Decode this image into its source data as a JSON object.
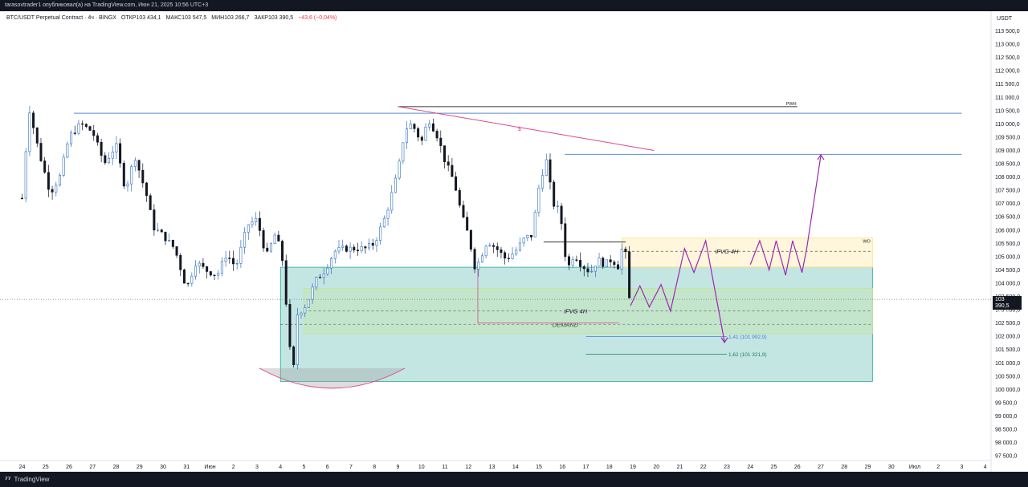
{
  "header": {
    "publisher_line": "tarasovtrader1 опубликовал(а) на TradingView.com, Июн 21, 2025 10:56 UTC+3"
  },
  "legend": {
    "symbol": "BTC/USDT Perpetual Contract · 4ч · BINGX",
    "open": "ОТКР103 434,1",
    "high": "МАКС103 547,5",
    "low": "МИН103 266,7",
    "close": "ЗАКР103 390,5",
    "change": "−43,6 (−0,04%)"
  },
  "footer": {
    "brand": "TradingView"
  },
  "chart_data": {
    "type": "candlestick",
    "currency": "USDT",
    "ylim": [
      97000,
      113700
    ],
    "y_ticks": [
      "113 500,0",
      "113 000,0",
      "112 500,0",
      "112 000,0",
      "111 500,0",
      "111 000,0",
      "110 500,0",
      "110 000,0",
      "109 500,0",
      "109 000,0",
      "108 500,0",
      "108 000,0",
      "107 500,0",
      "107 000,0",
      "106 500,0",
      "106 000,0",
      "105 500,0",
      "105 000,0",
      "104 500,0",
      "104 000,0",
      "103 500,0",
      "103 000,0",
      "102 500,0",
      "102 000,0",
      "101 500,0",
      "101 000,0",
      "100 500,0",
      "100 000,0",
      "99 500,0",
      "99 000,0",
      "98 500,0",
      "98 000,0",
      "97 500,0"
    ],
    "x_labels": [
      "24",
      "25",
      "26",
      "27",
      "28",
      "29",
      "30",
      "31",
      "Июн",
      "2",
      "3",
      "4",
      "5",
      "6",
      "7",
      "8",
      "9",
      "10",
      "11",
      "12",
      "13",
      "14",
      "15",
      "16",
      "17",
      "18",
      "19",
      "20",
      "21",
      "22",
      "23",
      "24",
      "25",
      "26",
      "27",
      "28",
      "29",
      "30",
      "Июл",
      "2",
      "3",
      "4"
    ],
    "last_price": "103 390,5",
    "countdown": "03:47",
    "anchors": [
      [
        24,
        107200
      ],
      [
        24.3,
        110600
      ],
      [
        24.7,
        109000
      ],
      [
        25.2,
        107400
      ],
      [
        25.6,
        108000
      ],
      [
        26,
        109500
      ],
      [
        26.5,
        110000
      ],
      [
        27,
        109700
      ],
      [
        27.5,
        108500
      ],
      [
        28,
        109200
      ],
      [
        28.4,
        107500
      ],
      [
        28.8,
        108800
      ],
      [
        29.3,
        107300
      ],
      [
        29.6,
        106100
      ],
      [
        30,
        105800
      ],
      [
        30.5,
        105300
      ],
      [
        31,
        103800
      ],
      [
        31.4,
        104800
      ],
      [
        31.8,
        104500
      ],
      [
        32.3,
        104300
      ],
      [
        32.7,
        105100
      ],
      [
        33.1,
        104600
      ],
      [
        33.6,
        106200
      ],
      [
        34,
        106400
      ],
      [
        34.4,
        105000
      ],
      [
        34.8,
        105900
      ],
      [
        35.1,
        104800
      ],
      [
        35.4,
        101500
      ],
      [
        35.55,
        100700
      ],
      [
        35.7,
        102800
      ],
      [
        36.1,
        103200
      ],
      [
        36.5,
        104100
      ],
      [
        36.9,
        104500
      ],
      [
        37.3,
        105200
      ],
      [
        37.7,
        105300
      ],
      [
        38.2,
        105300
      ],
      [
        38.6,
        105300
      ],
      [
        39,
        105500
      ],
      [
        39.5,
        106600
      ],
      [
        40,
        108200
      ],
      [
        40.3,
        109800
      ],
      [
        40.6,
        110000
      ],
      [
        41,
        109300
      ],
      [
        41.3,
        110200
      ],
      [
        41.7,
        109500
      ],
      [
        42,
        108600
      ],
      [
        42.4,
        107800
      ],
      [
        42.7,
        106600
      ],
      [
        43,
        105800
      ],
      [
        43.3,
        104500
      ],
      [
        43.8,
        105600
      ],
      [
        44.2,
        105300
      ],
      [
        44.6,
        104900
      ],
      [
        45,
        105200
      ],
      [
        45.4,
        105700
      ],
      [
        45.7,
        105800
      ],
      [
        46,
        107600
      ],
      [
        46.3,
        108700
      ],
      [
        46.6,
        107000
      ],
      [
        46.9,
        106700
      ],
      [
        47.2,
        104500
      ],
      [
        47.5,
        105100
      ],
      [
        47.8,
        104700
      ],
      [
        48.2,
        104400
      ],
      [
        48.5,
        104900
      ],
      [
        48.8,
        104700
      ],
      [
        49.1,
        104900
      ],
      [
        49.4,
        104600
      ],
      [
        49.65,
        105900
      ],
      [
        49.75,
        103800
      ],
      [
        49.85,
        103400
      ]
    ],
    "candle_count": 162,
    "horizontal_levels": [
      {
        "price": 110400,
        "x_from": 26.2,
        "x_to": 64.0,
        "color": "#5b8bd6"
      },
      {
        "price": 110650,
        "x_from": 40.0,
        "x_to": 57.0,
        "color": "#333333",
        "label": "PWH"
      },
      {
        "price": 108850,
        "x_from": 47.1,
        "x_to": 64.0,
        "color": "#5b8bd6"
      },
      {
        "price": 105550,
        "x_from": 46.2,
        "x_to": 49.7,
        "color": "#333333"
      }
    ],
    "trendline": {
      "from": [
        40.0,
        110650
      ],
      "to": [
        50.9,
        109000
      ],
      "color": "#e0468a",
      "label": "$"
    },
    "zones": [
      {
        "name": "DEMAND",
        "x_from": 35.0,
        "x_to": 60.2,
        "y_from": 100300,
        "y_to": 104600,
        "color": "#26a69a",
        "label": "DEMAND",
        "label_price": 102450
      },
      {
        "name": "iFVG 4H lower",
        "x_from": 36.0,
        "x_to": 60.2,
        "y_from": 102100,
        "y_to": 103800,
        "color": "#c6e48b",
        "label": "iFVG 4H",
        "label_price": 102950
      },
      {
        "name": "iFVG 4H upper",
        "x_from": 49.55,
        "x_to": 60.2,
        "y_from": 104600,
        "y_to": 105700,
        "color": "#ffe082",
        "label": "iFVG 4H",
        "label_price": 105200
      }
    ],
    "fib_levels": [
      {
        "price": 101992.9,
        "label": "1,41 (101 992,9)",
        "x_from": 48.0,
        "x_to": 54.0,
        "color": "#4a7fd4"
      },
      {
        "price": 101321.9,
        "label": "1,62 (101 321,9)",
        "x_from": 48.0,
        "x_to": 54.0,
        "color": "#1e7d6a"
      }
    ],
    "wo_label": "WO",
    "projection": [
      [
        49.9,
        103150
      ],
      [
        50.3,
        103900
      ],
      [
        50.7,
        103100
      ],
      [
        51.2,
        103950
      ],
      [
        51.6,
        102950
      ],
      [
        52.2,
        105300
      ],
      [
        52.6,
        104400
      ],
      [
        53.1,
        105600
      ],
      [
        53.9,
        101800
      ]
    ],
    "projection2": [
      [
        55.0,
        104700
      ],
      [
        55.4,
        105600
      ],
      [
        55.8,
        104500
      ],
      [
        56.1,
        105600
      ],
      [
        56.5,
        104300
      ],
      [
        56.8,
        105600
      ],
      [
        57.2,
        104400
      ],
      [
        57.4,
        105300
      ],
      [
        58.0,
        108800
      ]
    ]
  }
}
